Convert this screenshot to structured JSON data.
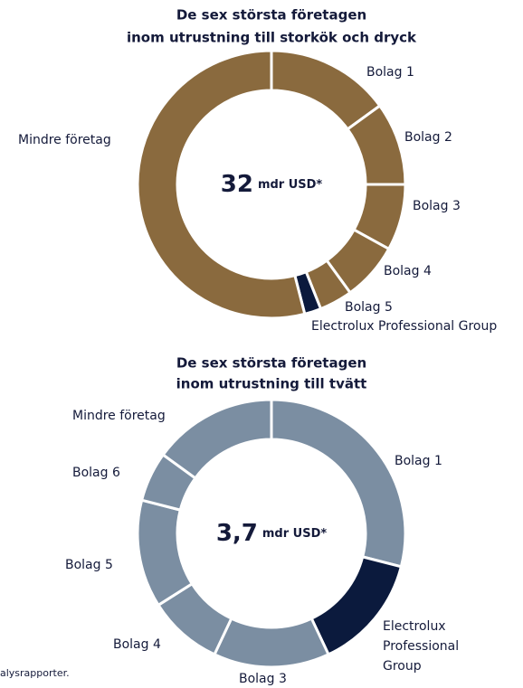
{
  "chart_data": [
    {
      "type": "donut",
      "title": [
        "De sex största företagen",
        "inom utrustning till storkök och dryck"
      ],
      "center_value": "32",
      "center_unit": "mdr USD*",
      "categories": [
        "Bolag 1",
        "Bolag 2",
        "Bolag 3",
        "Bolag 4",
        "Bolag 5",
        "Electrolux Professional Group",
        "Mindre företag"
      ],
      "values": [
        15,
        10,
        8,
        7,
        4,
        2,
        54
      ],
      "colors": [
        "#8a6a3e",
        "#8a6a3e",
        "#8a6a3e",
        "#8a6a3e",
        "#8a6a3e",
        "#0b1a3d",
        "#8a6a3e"
      ]
    },
    {
      "type": "donut",
      "title": [
        "De sex största företagen",
        "inom utrustning till tvätt"
      ],
      "center_value": "3,7",
      "center_unit": "mdr USD*",
      "categories": [
        "Bolag 1",
        "Electrolux Professional Group",
        "Bolag 3",
        "Bolag 4",
        "Bolag 5",
        "Bolag 6",
        "Mindre företag"
      ],
      "values": [
        29,
        14,
        14,
        9,
        13,
        6,
        15
      ],
      "colors": [
        "#7b8ea2",
        "#0b1a3d",
        "#7b8ea2",
        "#7b8ea2",
        "#7b8ea2",
        "#7b8ea2",
        "#7b8ea2"
      ]
    }
  ],
  "footnote": "alysrapporter."
}
